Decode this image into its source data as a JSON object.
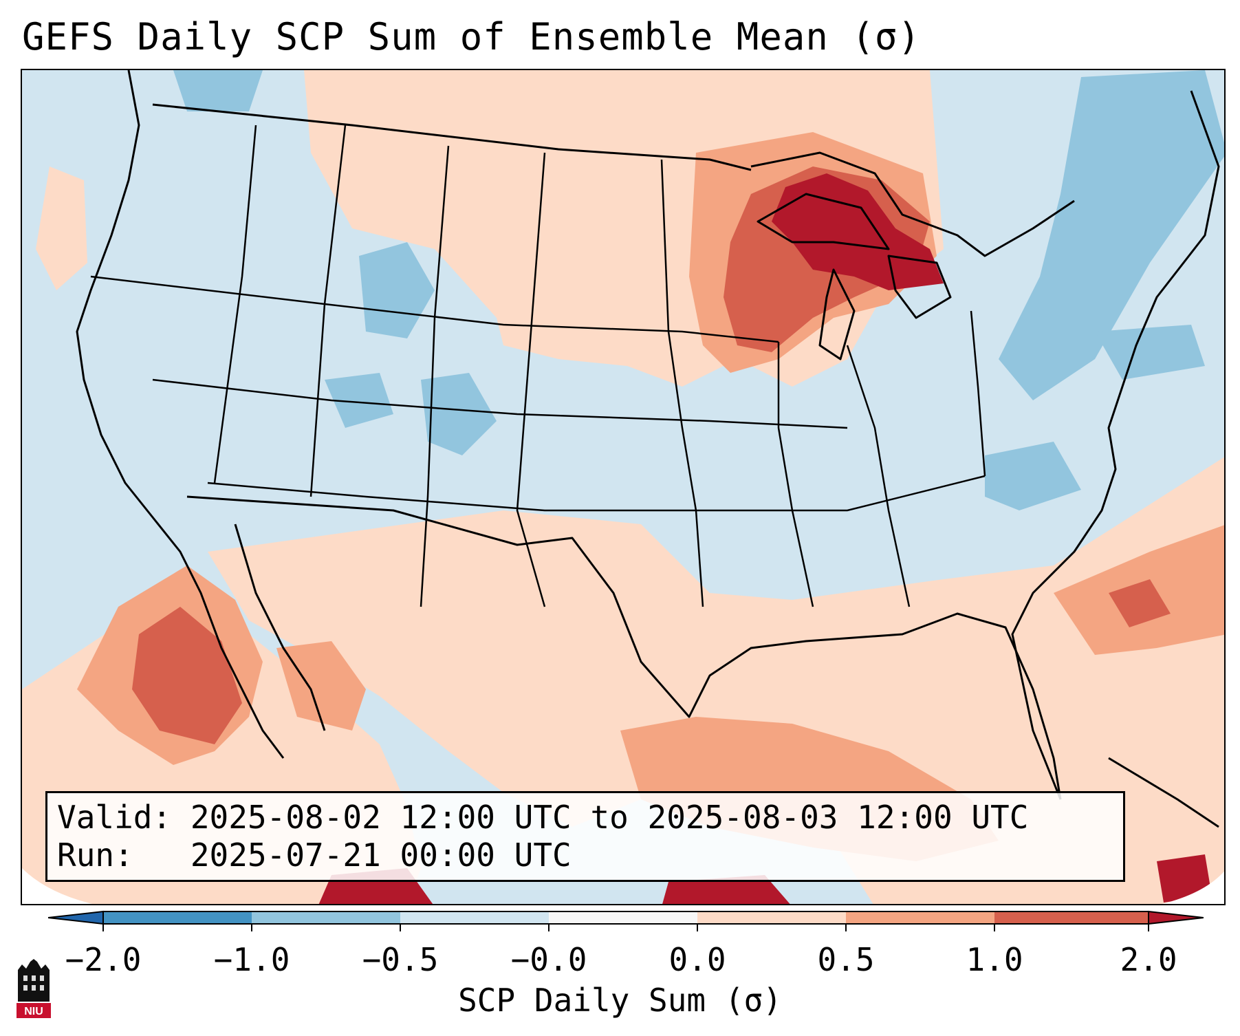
{
  "title": "GEFS Daily SCP Sum of Ensemble Mean (σ)",
  "info": {
    "valid_line": "Valid: 2025-08-02 12:00 UTC to 2025-08-03 12:00 UTC",
    "run_line": "Run:   2025-07-21 00:00 UTC"
  },
  "colorbar": {
    "label": "SCP Daily Sum (σ)",
    "ticks": [
      "−2.0",
      "−1.0",
      "−0.5",
      "−0.0",
      "0.0",
      "0.5",
      "1.0",
      "2.0"
    ],
    "colors": [
      "#4393c3",
      "#92c5de",
      "#d1e5f0",
      "#f7f7f7",
      "#fddbc7",
      "#f4a582",
      "#d6604d"
    ],
    "under_color": "#2166ac",
    "over_color": "#b2182b"
  },
  "logo": {
    "text": "NIU"
  }
}
